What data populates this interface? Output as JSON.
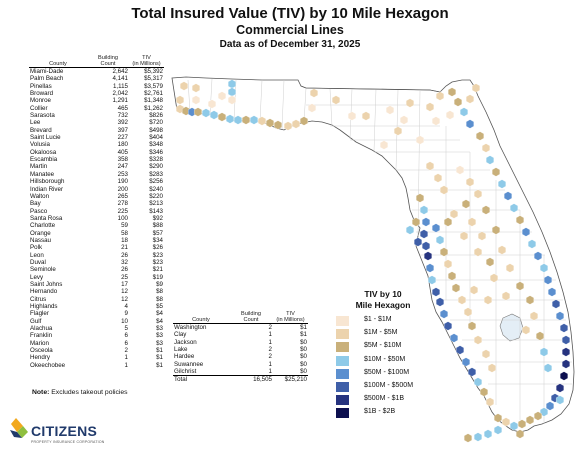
{
  "header": {
    "title": "Total Insured Value (TIV) by 10 Mile Hexagon",
    "subtitle": "Commercial Lines",
    "date_line": "Data as of December 31, 2025"
  },
  "table": {
    "col_county": "County",
    "col_building": "Building\nCount",
    "col_tiv": "TIV\n(in Millions)",
    "left_rows": [
      [
        "Miami-Dade",
        "2,642",
        "$5,392"
      ],
      [
        "Palm Beach",
        "4,141",
        "$5,317"
      ],
      [
        "Pinellas",
        "1,115",
        "$3,579"
      ],
      [
        "Broward",
        "2,042",
        "$2,761"
      ],
      [
        "Monroe",
        "1,291",
        "$1,348"
      ],
      [
        "Collier",
        "465",
        "$1,262"
      ],
      [
        "Sarasota",
        "732",
        "$826"
      ],
      [
        "Lee",
        "392",
        "$720"
      ],
      [
        "Brevard",
        "397",
        "$498"
      ],
      [
        "Saint Lucie",
        "227",
        "$404"
      ],
      [
        "Volusia",
        "180",
        "$348"
      ],
      [
        "Okaloosa",
        "405",
        "$346"
      ],
      [
        "Escambia",
        "358",
        "$328"
      ],
      [
        "Martin",
        "247",
        "$290"
      ],
      [
        "Manatee",
        "253",
        "$283"
      ],
      [
        "Hillsborough",
        "190",
        "$256"
      ],
      [
        "Indian River",
        "200",
        "$240"
      ],
      [
        "Walton",
        "265",
        "$220"
      ],
      [
        "Bay",
        "278",
        "$213"
      ],
      [
        "Pasco",
        "225",
        "$143"
      ],
      [
        "Santa Rosa",
        "100",
        "$92"
      ],
      [
        "Charlotte",
        "59",
        "$88"
      ],
      [
        "Orange",
        "58",
        "$57"
      ],
      [
        "Nassau",
        "18",
        "$34"
      ],
      [
        "Polk",
        "21",
        "$26"
      ],
      [
        "Leon",
        "26",
        "$23"
      ],
      [
        "Duval",
        "32",
        "$23"
      ],
      [
        "Seminole",
        "26",
        "$21"
      ],
      [
        "Levy",
        "25",
        "$19"
      ],
      [
        "Saint Johns",
        "17",
        "$9"
      ],
      [
        "Hernando",
        "12",
        "$8"
      ],
      [
        "Citrus",
        "12",
        "$8"
      ],
      [
        "Highlands",
        "4",
        "$5"
      ],
      [
        "Flagler",
        "9",
        "$4"
      ],
      [
        "Gulf",
        "10",
        "$4"
      ],
      [
        "Alachua",
        "5",
        "$3"
      ],
      [
        "Franklin",
        "6",
        "$3"
      ],
      [
        "Marion",
        "6",
        "$3"
      ],
      [
        "Osceola",
        "2",
        "$1"
      ],
      [
        "Hendry",
        "1",
        "$1"
      ],
      [
        "Okeechobee",
        "1",
        "$1"
      ]
    ],
    "right_rows": [
      [
        "Washington",
        "2",
        "$1"
      ],
      [
        "Clay",
        "1",
        "$1"
      ],
      [
        "Jackson",
        "1",
        "$0"
      ],
      [
        "Lake",
        "2",
        "$0"
      ],
      [
        "Hardee",
        "2",
        "$0"
      ],
      [
        "Suwannee",
        "1",
        "$0"
      ],
      [
        "Gilchrist",
        "1",
        "$0"
      ]
    ],
    "total": [
      "Total",
      "16,505",
      "$25,210"
    ]
  },
  "note": {
    "label": "Note:",
    "text": "Excludes takeout policies"
  },
  "logo": {
    "name": "CITIZENS",
    "tagline": "PROPERTY INSURANCE CORPORATION"
  },
  "legend": {
    "title_line1": "TIV by 10",
    "title_line2": "Mile Hexagon",
    "items": [
      {
        "label": "$1 - $1M",
        "color": "#f8e6d2"
      },
      {
        "label": "$1M - $5M",
        "color": "#ecd3ad"
      },
      {
        "label": "$5M - $10M",
        "color": "#c9b07a"
      },
      {
        "label": "$10M - $50M",
        "color": "#8ecae8"
      },
      {
        "label": "$50M - $100M",
        "color": "#5b8fcf"
      },
      {
        "label": "$100M - $500M",
        "color": "#3f5fa8"
      },
      {
        "label": "$500M - $1B",
        "color": "#26337f"
      },
      {
        "label": "$1B - $2B",
        "color": "#0d0f4f"
      }
    ]
  },
  "map": {
    "land_color": "#ffffff",
    "border_color": "#555555",
    "county_line_color": "#c8c8c8",
    "background": "#ffffff"
  }
}
